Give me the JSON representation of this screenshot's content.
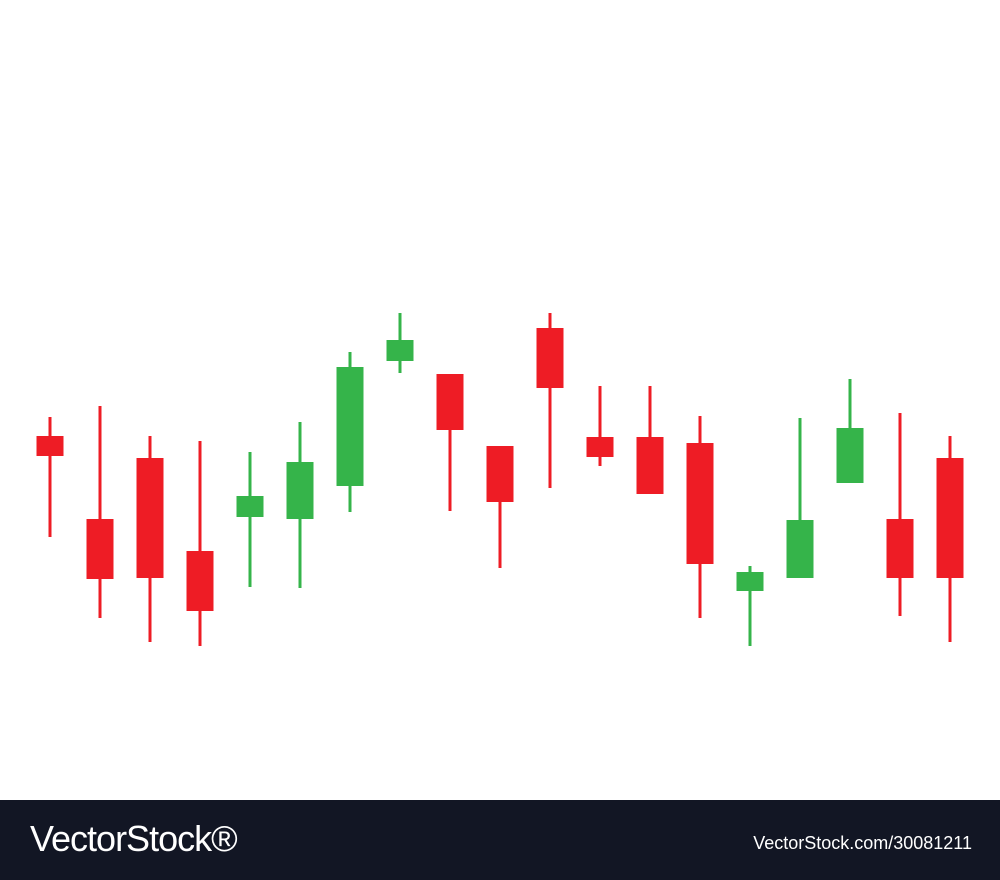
{
  "colors": {
    "up": "#35b44a",
    "down": "#ee1c25",
    "background": "#ffffff",
    "footer": "#121624",
    "footer_text": "#ffffff"
  },
  "footer": {
    "brand": "VectorStock®",
    "image_id": "VectorStock.com/30081211"
  },
  "chart_data": {
    "type": "candlestick",
    "title": "",
    "xlabel": "",
    "ylabel": "",
    "axes_visible": false,
    "grid": false,
    "legend": "none",
    "ylim": [
      0,
      100
    ],
    "candles": [
      {
        "open": 56.4,
        "high": 58.3,
        "low": 46.3,
        "close": 54.4
      },
      {
        "open": 48.1,
        "high": 59.4,
        "low": 38.2,
        "close": 42.1
      },
      {
        "open": 54.2,
        "high": 56.4,
        "low": 35.8,
        "close": 42.2
      },
      {
        "open": 44.9,
        "high": 55.9,
        "low": 35.4,
        "close": 38.9
      },
      {
        "open": 48.3,
        "high": 54.8,
        "low": 41.3,
        "close": 50.4
      },
      {
        "open": 48.1,
        "high": 57.8,
        "low": 41.2,
        "close": 53.8
      },
      {
        "open": 51.4,
        "high": 64.8,
        "low": 48.8,
        "close": 63.3
      },
      {
        "open": 63.9,
        "high": 68.7,
        "low": 62.7,
        "close": 66.0
      },
      {
        "open": 62.6,
        "high": 62.6,
        "low": 48.9,
        "close": 57.0
      },
      {
        "open": 55.4,
        "high": 55.4,
        "low": 43.2,
        "close": 49.8
      },
      {
        "open": 67.2,
        "high": 68.7,
        "low": 51.2,
        "close": 61.2
      },
      {
        "open": 56.3,
        "high": 61.4,
        "low": 53.4,
        "close": 54.3
      },
      {
        "open": 56.3,
        "high": 61.4,
        "low": 50.6,
        "close": 50.6
      },
      {
        "open": 55.7,
        "high": 58.4,
        "low": 38.2,
        "close": 43.6
      },
      {
        "open": 40.9,
        "high": 43.4,
        "low": 35.4,
        "close": 42.8
      },
      {
        "open": 42.2,
        "high": 58.2,
        "low": 42.2,
        "close": 48.0
      },
      {
        "open": 51.7,
        "high": 62.1,
        "low": 51.7,
        "close": 57.2
      },
      {
        "open": 48.1,
        "high": 58.7,
        "low": 38.4,
        "close": 42.2
      },
      {
        "open": 54.2,
        "high": 56.4,
        "low": 35.8,
        "close": 42.2
      }
    ]
  }
}
